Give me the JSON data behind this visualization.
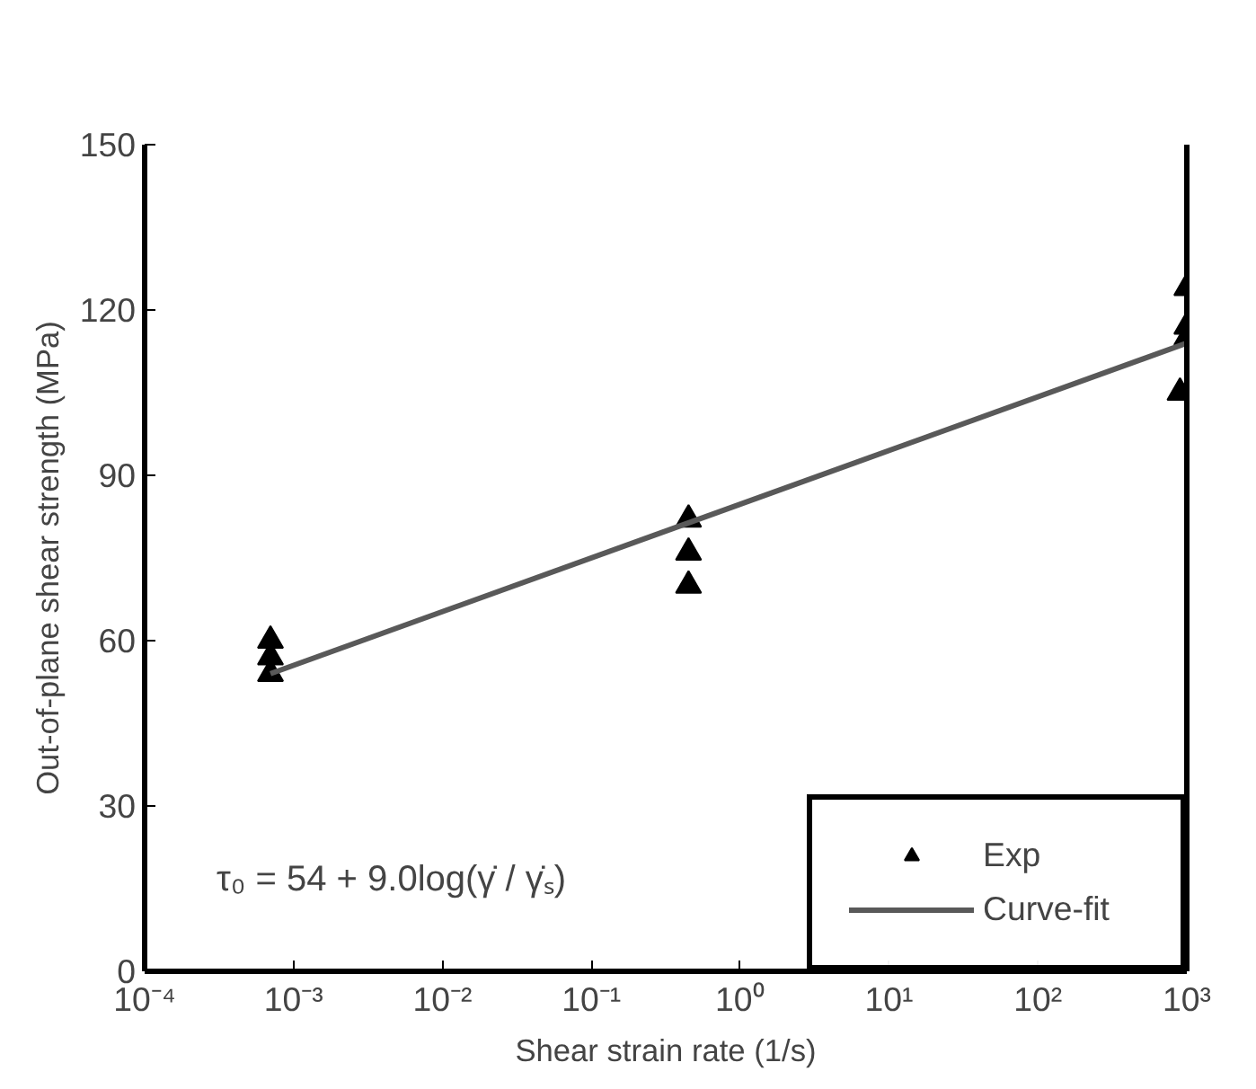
{
  "chart_data": {
    "type": "scatter",
    "xlabel": "Shear strain rate (1/s)",
    "ylabel": "Out-of-plane shear strength (MPa)",
    "log": "x",
    "xlim": [
      0.0001,
      1000
    ],
    "ylim": [
      0,
      150
    ],
    "xticks": [
      {
        "value": 0.0001,
        "label": "10⁻⁴"
      },
      {
        "value": 0.001,
        "label": "10⁻³"
      },
      {
        "value": 0.01,
        "label": "10⁻²"
      },
      {
        "value": 0.1,
        "label": "10⁻¹"
      },
      {
        "value": 1,
        "label": "10⁰"
      },
      {
        "value": 10,
        "label": "10¹"
      },
      {
        "value": 100,
        "label": "10²"
      },
      {
        "value": 1000,
        "label": "10³"
      }
    ],
    "yticks": [
      0,
      30,
      60,
      90,
      120,
      150
    ],
    "grid": false,
    "legend": "bottom right",
    "series": [
      {
        "name": "Exp",
        "marker": "triangle",
        "color": "#000000",
        "x": [
          0.0007,
          0.0007,
          0.0007,
          0.45,
          0.45,
          0.45,
          1000,
          1000,
          1000,
          900
        ],
        "values": [
          60,
          57,
          54,
          82,
          76,
          70,
          124,
          117,
          115,
          105
        ]
      },
      {
        "name": "Curve-fit",
        "type": "line",
        "color": "#595959",
        "line_style": "solid",
        "x": [
          0.0007,
          1000
        ],
        "values": [
          54,
          114
        ]
      }
    ],
    "annotations": [
      "τ₀ = 54 + 9.0log(γ̇ / γ̇ₛ)"
    ]
  }
}
